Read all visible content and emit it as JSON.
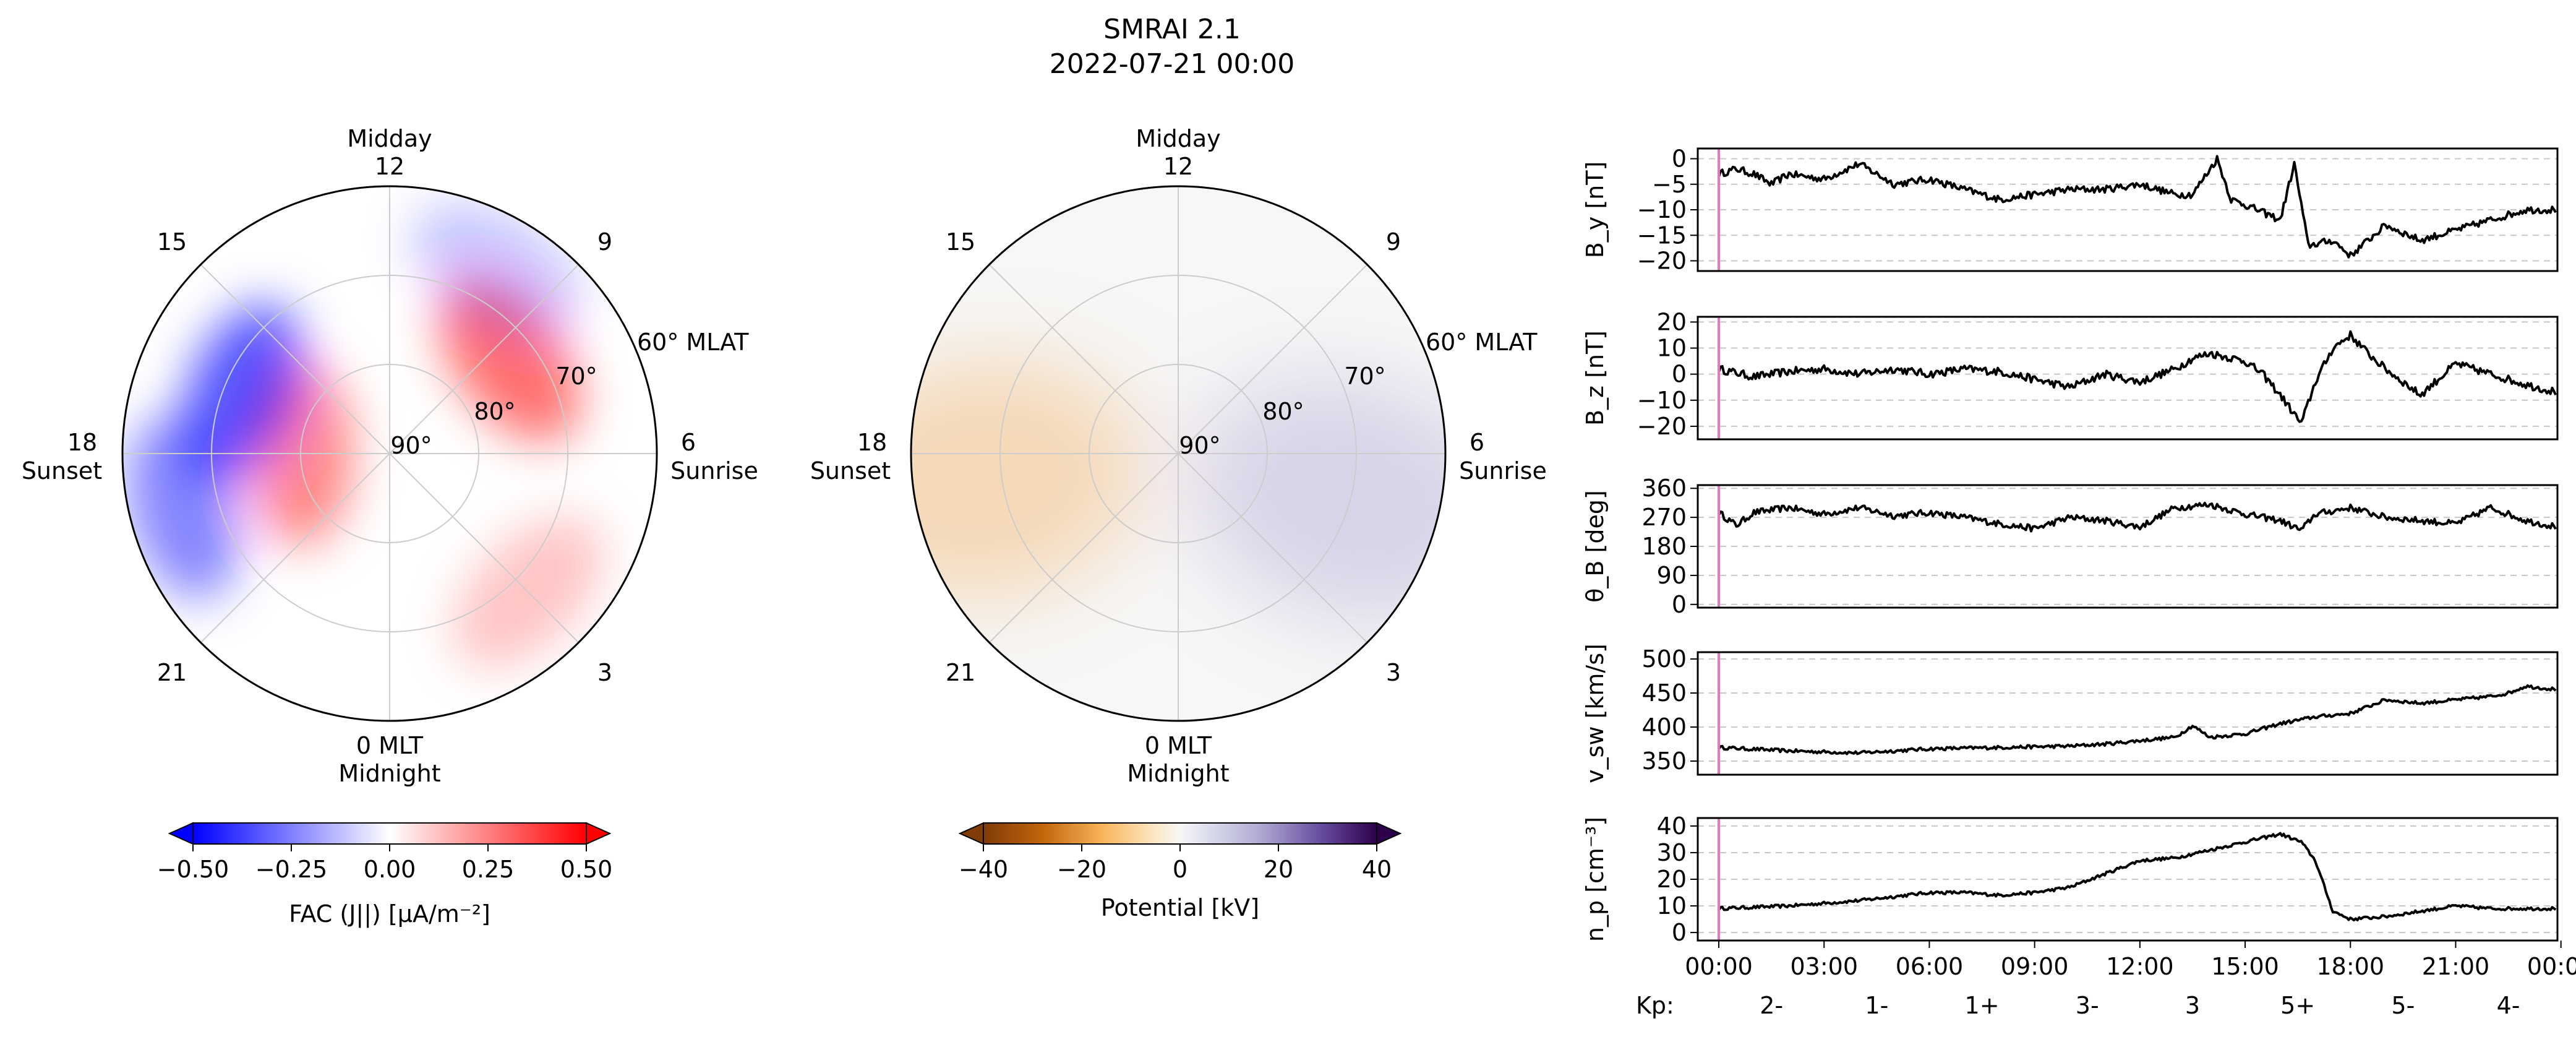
{
  "title": {
    "line1": "SMRAI 2.1",
    "line2": "2022-07-21 00:00"
  },
  "polar_labels": {
    "midday": "Midday",
    "midnight": "Midnight",
    "sunset": "Sunset",
    "sunrise": "Sunrise",
    "mlt_12": "12",
    "mlt_15": "15",
    "mlt_9": "9",
    "mlt_18": "18",
    "mlt_6": "6",
    "mlt_21": "21",
    "mlt_3": "3",
    "mlt_0": "0 MLT",
    "mlat_60": "60° MLAT",
    "mlat_70": "70°",
    "mlat_80": "80°",
    "mlat_90": "90°"
  },
  "colors": {
    "fac_neg": "#0000ff",
    "fac_pos": "#ff0000",
    "pot_neg": "#7f3b08",
    "pot_pos": "#2d004b",
    "trace": "#000000",
    "marker": "#e377c2",
    "grid": "#cccccc"
  },
  "chart_data": [
    {
      "type": "heatmap",
      "projection": "polar",
      "colorbar": {
        "label": "FAC (J||) [μA/m⁻²]",
        "ticks": [
          "−0.50",
          "−0.25",
          "0.00",
          "0.25",
          "0.50"
        ],
        "range": [
          -0.5,
          0.5
        ],
        "extend": "both",
        "colormap": "bwr"
      },
      "mlat_rings": [
        60,
        70,
        80,
        90
      ],
      "mlt_ticks": [
        "12",
        "15",
        "18",
        "21",
        "0 MLT",
        "3",
        "6",
        "9"
      ],
      "regions": [
        {
          "sign": "positive",
          "mlat": 80,
          "mlt": 18,
          "level": 0.25
        },
        {
          "sign": "positive",
          "mlat": 73,
          "mlt": 8.5,
          "level": 0.3
        },
        {
          "sign": "positive",
          "mlat": 68,
          "mlt": 3,
          "level": 0.12
        },
        {
          "sign": "negative",
          "mlat": 72,
          "mlt": 16.5,
          "level": -0.35
        },
        {
          "sign": "negative",
          "mlat": 66,
          "mlt": 19,
          "level": -0.25
        },
        {
          "sign": "negative",
          "mlat": 66,
          "mlt": 10,
          "level": -0.12
        }
      ]
    },
    {
      "type": "heatmap",
      "projection": "polar",
      "colorbar": {
        "label": "Potential [kV]",
        "ticks": [
          "−40",
          "−20",
          "0",
          "20",
          "40"
        ],
        "range": [
          -40,
          40
        ],
        "extend": "both",
        "colormap": "PuOr"
      },
      "mlat_rings": [
        60,
        70,
        80,
        90
      ],
      "mlt_ticks": [
        "12",
        "15",
        "18",
        "21",
        "0 MLT",
        "3",
        "6",
        "9"
      ],
      "regions": [
        {
          "sign": "negative",
          "mlat": 68,
          "mlt": 18.5,
          "level": -15
        },
        {
          "sign": "positive",
          "mlat": 70,
          "mlt": 5,
          "level": 12
        }
      ]
    },
    {
      "type": "line",
      "ylabel": "B_y [nT]",
      "ylim": [
        -22,
        2
      ],
      "yticks": [
        "0",
        "−5",
        "−10",
        "−15",
        "−20"
      ],
      "ytick_values": [
        0,
        -5,
        -10,
        -15,
        -20
      ],
      "x_start": "00:00",
      "x_end": "24:00",
      "marker_x": "00:00",
      "keypoints": [
        [
          0,
          -3
        ],
        [
          0.5,
          -2
        ],
        [
          1,
          -3
        ],
        [
          1.5,
          -5
        ],
        [
          2,
          -3
        ],
        [
          3,
          -4
        ],
        [
          4,
          -1
        ],
        [
          5,
          -5
        ],
        [
          6,
          -4
        ],
        [
          7,
          -6
        ],
        [
          8,
          -8
        ],
        [
          9,
          -7
        ],
        [
          10,
          -6
        ],
        [
          11,
          -6
        ],
        [
          12,
          -5
        ],
        [
          13,
          -7
        ],
        [
          13.5,
          -7
        ],
        [
          14.2,
          0
        ],
        [
          14.6,
          -8
        ],
        [
          15,
          -9
        ],
        [
          16,
          -12
        ],
        [
          16.4,
          -1
        ],
        [
          16.8,
          -17
        ],
        [
          17.5,
          -16
        ],
        [
          18,
          -19
        ],
        [
          19,
          -13
        ],
        [
          20,
          -16
        ],
        [
          21,
          -14
        ],
        [
          22,
          -12
        ],
        [
          23,
          -10
        ],
        [
          23.9,
          -10
        ]
      ],
      "noise": 1.4
    },
    {
      "type": "line",
      "ylabel": "B_z [nT]",
      "ylim": [
        -25,
        22
      ],
      "yticks": [
        "20",
        "10",
        "0",
        "−10",
        "−20"
      ],
      "ytick_values": [
        20,
        10,
        0,
        -10,
        -20
      ],
      "x_start": "00:00",
      "x_end": "24:00",
      "marker_x": "00:00",
      "keypoints": [
        [
          0,
          2
        ],
        [
          1,
          -1
        ],
        [
          2,
          1
        ],
        [
          3,
          2
        ],
        [
          4,
          0
        ],
        [
          5,
          2
        ],
        [
          6,
          0
        ],
        [
          7,
          2
        ],
        [
          8,
          1
        ],
        [
          9,
          -2
        ],
        [
          10,
          -5
        ],
        [
          11,
          0
        ],
        [
          12,
          -3
        ],
        [
          13,
          2
        ],
        [
          13.5,
          6
        ],
        [
          14,
          8
        ],
        [
          15,
          5
        ],
        [
          15.5,
          0
        ],
        [
          16,
          -8
        ],
        [
          16.6,
          -19
        ],
        [
          17,
          -3
        ],
        [
          17.5,
          10
        ],
        [
          18,
          15
        ],
        [
          18.5,
          8
        ],
        [
          19,
          2
        ],
        [
          20,
          -8
        ],
        [
          21,
          4
        ],
        [
          22,
          0
        ],
        [
          23,
          -4
        ],
        [
          23.9,
          -7
        ]
      ],
      "noise": 3
    },
    {
      "type": "line",
      "ylabel": "θ_B [deg]",
      "ylim": [
        -10,
        370
      ],
      "yticks": [
        "360",
        "270",
        "180",
        "90",
        "0"
      ],
      "ytick_values": [
        360,
        270,
        180,
        90,
        0
      ],
      "x_start": "00:00",
      "x_end": "24:00",
      "marker_x": "00:00",
      "keypoints": [
        [
          0,
          285
        ],
        [
          0.5,
          245
        ],
        [
          1,
          285
        ],
        [
          2,
          300
        ],
        [
          3,
          280
        ],
        [
          4,
          300
        ],
        [
          5,
          275
        ],
        [
          6,
          285
        ],
        [
          7,
          270
        ],
        [
          8,
          250
        ],
        [
          9,
          235
        ],
        [
          10,
          270
        ],
        [
          11,
          260
        ],
        [
          12,
          240
        ],
        [
          13,
          300
        ],
        [
          14,
          310
        ],
        [
          15,
          280
        ],
        [
          16,
          260
        ],
        [
          16.6,
          230
        ],
        [
          17,
          280
        ],
        [
          18,
          300
        ],
        [
          19,
          270
        ],
        [
          20,
          260
        ],
        [
          21,
          250
        ],
        [
          22,
          300
        ],
        [
          23,
          260
        ],
        [
          23.9,
          240
        ]
      ],
      "noise": 20
    },
    {
      "type": "line",
      "ylabel": "v_sw [km/s]",
      "ylim": [
        330,
        510
      ],
      "yticks": [
        "500",
        "450",
        "400",
        "350"
      ],
      "ytick_values": [
        500,
        450,
        400,
        350
      ],
      "x_start": "00:00",
      "x_end": "24:00",
      "marker_x": "00:00",
      "keypoints": [
        [
          0,
          370
        ],
        [
          2,
          365
        ],
        [
          4,
          362
        ],
        [
          6,
          368
        ],
        [
          8,
          370
        ],
        [
          10,
          372
        ],
        [
          11,
          375
        ],
        [
          12,
          380
        ],
        [
          13,
          385
        ],
        [
          13.5,
          402
        ],
        [
          14,
          385
        ],
        [
          15,
          390
        ],
        [
          16,
          405
        ],
        [
          17,
          415
        ],
        [
          18,
          420
        ],
        [
          19,
          440
        ],
        [
          20,
          435
        ],
        [
          21,
          440
        ],
        [
          22,
          445
        ],
        [
          22.5,
          450
        ],
        [
          23,
          460
        ],
        [
          23.9,
          455
        ]
      ],
      "noise": 5
    },
    {
      "type": "line",
      "ylabel": "n_p [cm⁻³]",
      "ylim": [
        -3,
        43
      ],
      "yticks": [
        "40",
        "30",
        "20",
        "10",
        "0"
      ],
      "ytick_values": [
        40,
        30,
        20,
        10,
        0
      ],
      "x_start": "00:00",
      "x_end": "24:00",
      "marker_x": "00:00",
      "keypoints": [
        [
          0,
          9
        ],
        [
          2,
          10
        ],
        [
          4,
          12
        ],
        [
          6,
          15
        ],
        [
          7,
          15
        ],
        [
          8,
          14
        ],
        [
          9,
          15
        ],
        [
          10,
          17
        ],
        [
          11,
          22
        ],
        [
          12,
          27
        ],
        [
          13,
          28
        ],
        [
          14,
          31
        ],
        [
          15,
          34
        ],
        [
          16,
          37
        ],
        [
          16.6,
          34
        ],
        [
          17,
          27
        ],
        [
          17.5,
          8
        ],
        [
          18,
          5
        ],
        [
          19,
          6
        ],
        [
          20,
          8
        ],
        [
          21,
          10
        ],
        [
          22,
          9
        ],
        [
          23,
          9
        ],
        [
          23.9,
          9
        ]
      ],
      "noise": 1.2
    }
  ],
  "x_axis": {
    "ticks": [
      "00:00",
      "03:00",
      "06:00",
      "09:00",
      "12:00",
      "15:00",
      "18:00",
      "21:00",
      "00:00"
    ]
  },
  "kp": {
    "label": "Kp:",
    "values": [
      "2-",
      "1-",
      "1+",
      "3-",
      "3",
      "5+",
      "5-",
      "4-"
    ]
  }
}
